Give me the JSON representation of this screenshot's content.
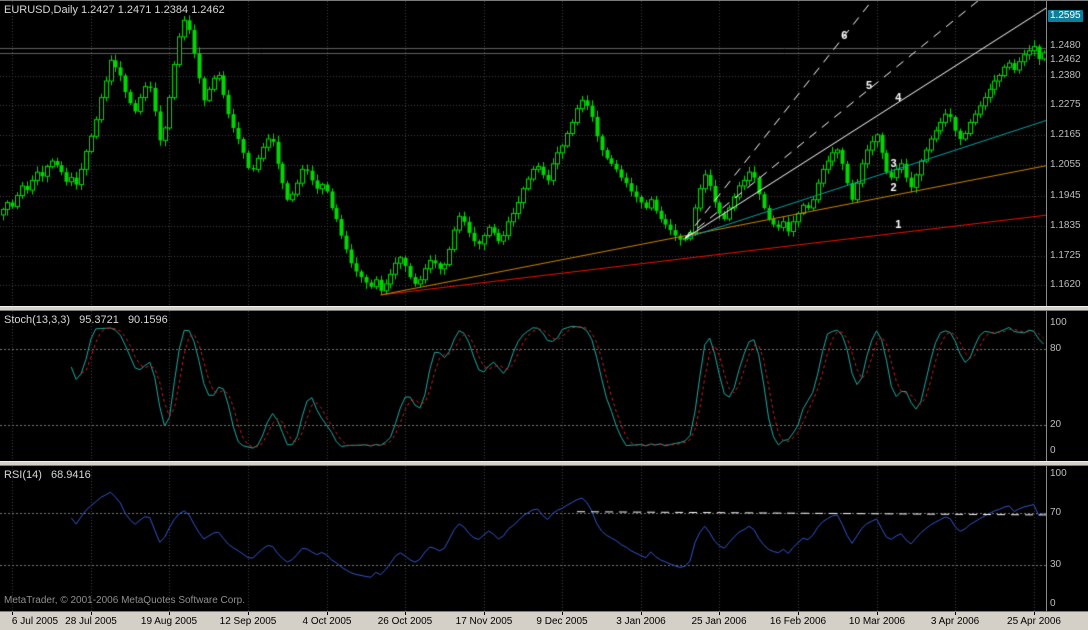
{
  "header": {
    "title": "EURUSD,Daily 1.2427 1.2471 1.2384 1.2462"
  },
  "footer": {
    "copyright": "MetaTrader, © 2001-2006 MetaQuotes Software Corp."
  },
  "colors": {
    "background": "#000000",
    "grid": "#3f3f3f",
    "candle": "#00d800",
    "price_line": "#5f5f5f",
    "level_line": "#767676",
    "scale_text": "#bdbdbd",
    "badge_bg": "#0e7f9a",
    "badge_text": "#ffffff",
    "axis_bg": "#d4d0c8",
    "axis_text": "#000000",
    "fan_label": "#ffffff"
  },
  "chart_data": {
    "type": "candlestick",
    "symbol": "EURUSD",
    "timeframe": "Daily",
    "quote": {
      "open": "1.2427",
      "high": "1.2471",
      "low": "1.2384",
      "close": "1.2462"
    },
    "price_scale": {
      "max": 1.265,
      "min": 1.1545,
      "gridlines": [
        1.238,
        1.2275,
        1.2165,
        1.2055,
        1.1945,
        1.1835,
        1.1725,
        1.162
      ],
      "solid_levels": [
        1.248,
        1.2462
      ],
      "labels": [
        {
          "text": "1.2595",
          "price": 1.2595,
          "highlight": true
        },
        {
          "text": "1.2480",
          "price": 1.248,
          "dy": -2
        },
        {
          "text": "1.2462",
          "price": 1.2462,
          "dy": 7
        },
        {
          "text": "1.2380",
          "price": 1.238
        },
        {
          "text": "1.2275",
          "price": 1.2275
        },
        {
          "text": "1.2165",
          "price": 1.2165
        },
        {
          "text": "1.2055",
          "price": 1.2055
        },
        {
          "text": "1.1945",
          "price": 1.1945
        },
        {
          "text": "1.1835",
          "price": 1.1835
        },
        {
          "text": "1.1725",
          "price": 1.1725
        },
        {
          "text": "1.1620",
          "price": 1.162
        }
      ]
    },
    "x_ticks": [
      {
        "i": 2,
        "label": "6 Jul 2005"
      },
      {
        "i": 18,
        "label": "28 Jul 2005"
      },
      {
        "i": 34,
        "label": "19 Aug 2005"
      },
      {
        "i": 50,
        "label": "12 Sep 2005"
      },
      {
        "i": 66,
        "label": "4 Oct 2005"
      },
      {
        "i": 82,
        "label": "26 Oct 2005"
      },
      {
        "i": 98,
        "label": "17 Nov 2005"
      },
      {
        "i": 114,
        "label": "9 Dec 2005"
      },
      {
        "i": 130,
        "label": "3 Jan 2006"
      },
      {
        "i": 146,
        "label": "25 Jan 2006"
      },
      {
        "i": 162,
        "label": "16 Feb 2006"
      },
      {
        "i": 178,
        "label": "10 Mar 2006"
      },
      {
        "i": 194,
        "label": "3 Apr 2006"
      },
      {
        "i": 210,
        "label": "25 Apr 2006"
      }
    ],
    "closes": [
      1.1895,
      1.192,
      1.1905,
      1.1945,
      1.198,
      1.1965,
      1.2,
      1.203,
      1.2015,
      1.205,
      1.207,
      1.2055,
      1.203,
      1.1995,
      1.201,
      1.1985,
      1.204,
      1.2105,
      1.216,
      1.222,
      1.23,
      1.236,
      1.2435,
      1.241,
      1.238,
      1.232,
      1.228,
      1.225,
      1.23,
      1.234,
      1.2335,
      1.225,
      1.2145,
      1.219,
      1.23,
      1.242,
      1.252,
      1.258,
      1.2545,
      1.246,
      1.237,
      1.229,
      1.233,
      1.237,
      1.238,
      1.231,
      1.224,
      1.219,
      1.215,
      1.21,
      1.2045,
      1.204,
      1.208,
      1.212,
      1.215,
      1.214,
      1.206,
      1.199,
      1.193,
      1.195,
      1.199,
      1.204,
      1.2035,
      1.2,
      1.197,
      1.1985,
      1.196,
      1.19,
      1.186,
      1.18,
      1.175,
      1.17,
      1.167,
      1.165,
      1.163,
      1.1615,
      1.164,
      1.16,
      1.1625,
      1.166,
      1.17,
      1.172,
      1.169,
      1.165,
      1.1625,
      1.164,
      1.168,
      1.171,
      1.17,
      1.168,
      1.1695,
      1.175,
      1.182,
      1.187,
      1.185,
      1.181,
      1.178,
      1.177,
      1.18,
      1.183,
      1.181,
      1.178,
      1.18,
      1.185,
      1.188,
      1.192,
      1.197,
      1.2005,
      1.204,
      1.205,
      1.202,
      1.2,
      1.206,
      1.21,
      1.2125,
      1.217,
      1.221,
      1.226,
      1.229,
      1.227,
      1.223,
      1.216,
      1.211,
      1.208,
      1.206,
      1.204,
      1.201,
      1.199,
      1.196,
      1.194,
      1.192,
      1.19,
      1.193,
      1.189,
      1.186,
      1.184,
      1.182,
      1.18,
      1.1785,
      1.179,
      1.181,
      1.19,
      1.197,
      1.202,
      1.198,
      1.192,
      1.188,
      1.186,
      1.19,
      1.194,
      1.198,
      1.2,
      1.203,
      1.201,
      1.195,
      1.19,
      1.186,
      1.184,
      1.183,
      1.185,
      1.1815,
      1.185,
      1.188,
      1.191,
      1.19,
      1.193,
      1.199,
      1.204,
      1.207,
      1.21,
      1.211,
      1.206,
      1.199,
      1.193,
      1.199,
      1.206,
      1.211,
      1.214,
      1.2165,
      1.21,
      1.203,
      1.201,
      1.204,
      1.206,
      1.201,
      1.1975,
      1.202,
      1.207,
      1.211,
      1.215,
      1.218,
      1.221,
      1.224,
      1.223,
      1.218,
      1.215,
      1.217,
      1.221,
      1.224,
      1.227,
      1.23,
      1.233,
      1.236,
      1.238,
      1.241,
      1.2425,
      1.24,
      1.243,
      1.2455,
      1.247,
      1.2485,
      1.244,
      1.2462
    ],
    "wick": {
      "base": 0.0006,
      "amp": 0.0017
    },
    "trendlines": [
      {
        "n": "1",
        "color": "#ee1100",
        "style": "solid",
        "x1": 77,
        "y1": 1.1585,
        "x2": 213,
        "y2": 1.1875,
        "label_bar": 181
      },
      {
        "n": "2",
        "color": "#cc8400",
        "style": "solid",
        "x1": 77,
        "y1": 1.1585,
        "x2": 213,
        "y2": 1.2055,
        "label_bar": 180
      },
      {
        "n": "3",
        "color": "#00a2a2",
        "style": "solid",
        "x1": 139,
        "y1": 1.179,
        "x2": 213,
        "y2": 1.222,
        "label_bar": 180
      },
      {
        "n": "4",
        "color": "#ffffff",
        "style": "solid",
        "x1": 139,
        "y1": 1.179,
        "x2": 213,
        "y2": 1.263,
        "label_bar": 181
      },
      {
        "n": "5",
        "color": "#ffffff",
        "style": "dashed",
        "x1": 139,
        "y1": 1.179,
        "x2": 200,
        "y2": 1.267,
        "label_bar": 175
      },
      {
        "n": "6",
        "color": "#ffffff",
        "style": "dashed",
        "x1": 139,
        "y1": 1.179,
        "x2": 177,
        "y2": 1.265,
        "label_bar": 170
      }
    ],
    "indicators": {
      "stoch": {
        "name": "Stoch(13,3,3)",
        "k_value": "95.3721",
        "d_value": "90.1596",
        "period": 13,
        "signal": 3,
        "slowing": 3,
        "levels": [
          80,
          20
        ],
        "scale_labels": [
          100,
          80,
          20,
          0
        ],
        "k_color": "#21a9a0",
        "d_color": "#cc2020"
      },
      "rsi": {
        "name": "RSI(14)",
        "value": "68.9416",
        "period": 14,
        "levels": [
          70,
          30
        ],
        "scale_labels": [
          100,
          70,
          30,
          0
        ],
        "color": "#3355cc",
        "trendline": {
          "x1": 117,
          "v1": 71,
          "x2": 213,
          "v2": 68.5,
          "color": "#ffffff",
          "style": "dashed"
        }
      }
    }
  }
}
